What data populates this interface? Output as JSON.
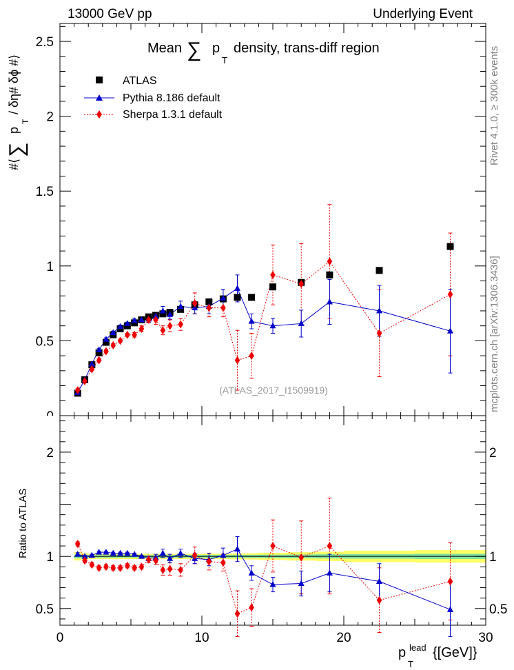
{
  "header": {
    "left": "13000 GeV pp",
    "right": "Underlying Event"
  },
  "side_labels": {
    "rivet": "Rivet 4.1.0, ≥ 300k events",
    "mcplots": "mcplots.cern.ch [arXiv:1306.3436]"
  },
  "watermark": "(ATLAS_2017_I1509919)",
  "colors": {
    "atlas": "#000000",
    "pythia": "#0000cc",
    "sherpa": "#ee0000",
    "band_inner": "#7fe0a0",
    "band_outer": "#ffff66"
  },
  "chart_data": [
    {
      "type": "scatter",
      "title": "Mean ∑ p_T density, trans-diff region",
      "title_parts": {
        "pre": "Mean",
        "sum": "∑",
        "p": "p",
        "sub": "T",
        "post": "density, trans-diff region"
      },
      "ylabel": "#⟨ ∑ p_T / δη# δϕ #⟩",
      "ylabel_parts": {
        "pre": "#⟨",
        "sum": "∑",
        "p": "p",
        "sub": "T",
        "post": "/ δη# δϕ #⟩"
      },
      "xlim": [
        0,
        30
      ],
      "ylim": [
        0,
        2.62
      ],
      "yticks": [
        0.5,
        1,
        1.5,
        2,
        2.5
      ],
      "ytick_labels": [
        "0.5",
        "1",
        "1.5",
        "2",
        "2.5"
      ],
      "y_bottom_label": "0",
      "legend": [
        {
          "name": "ATLAS",
          "marker": "square"
        },
        {
          "name": "Pythia 8.186 default",
          "marker": "triangle"
        },
        {
          "name": "Sherpa 1.3.1 default",
          "marker": "diamond"
        }
      ],
      "series": [
        {
          "name": "ATLAS",
          "x": [
            1.25,
            1.75,
            2.25,
            2.75,
            3.25,
            3.75,
            4.25,
            4.75,
            5.25,
            5.75,
            6.25,
            6.75,
            7.25,
            7.75,
            8.5,
            9.5,
            10.5,
            11.5,
            12.5,
            13.5,
            15,
            17,
            19,
            22.5,
            27.5
          ],
          "y": [
            0.15,
            0.24,
            0.34,
            0.42,
            0.49,
            0.54,
            0.58,
            0.6,
            0.62,
            0.64,
            0.66,
            0.67,
            0.68,
            0.69,
            0.71,
            0.74,
            0.76,
            0.78,
            0.79,
            0.79,
            0.86,
            0.89,
            0.94,
            0.97,
            1.13
          ]
        },
        {
          "name": "Pythia 8.186 default",
          "x": [
            1.25,
            1.75,
            2.25,
            2.75,
            3.25,
            3.75,
            4.25,
            4.75,
            5.25,
            5.75,
            6.25,
            6.75,
            7.25,
            7.75,
            8.5,
            9.5,
            10.5,
            11.5,
            12.5,
            13.5,
            15,
            17,
            19,
            22.5,
            27.5
          ],
          "y": [
            0.155,
            0.24,
            0.345,
            0.44,
            0.51,
            0.555,
            0.595,
            0.615,
            0.635,
            0.64,
            0.645,
            0.665,
            0.7,
            0.675,
            0.73,
            0.72,
            0.73,
            0.785,
            0.85,
            0.63,
            0.6,
            0.615,
            0.76,
            0.7,
            0.565
          ],
          "err": [
            0.01,
            0.01,
            0.01,
            0.01,
            0.01,
            0.01,
            0.01,
            0.01,
            0.015,
            0.015,
            0.02,
            0.02,
            0.03,
            0.03,
            0.035,
            0.04,
            0.05,
            0.06,
            0.09,
            0.05,
            0.05,
            0.09,
            0.15,
            0.17,
            0.28
          ]
        },
        {
          "name": "Sherpa 1.3.1 default",
          "x": [
            1.25,
            1.75,
            2.25,
            2.75,
            3.25,
            3.75,
            4.25,
            4.75,
            5.25,
            5.75,
            6.25,
            6.75,
            7.25,
            7.75,
            8.5,
            9.5,
            10.5,
            11.5,
            12.5,
            13.5,
            15,
            17,
            19,
            22.5,
            27.5
          ],
          "y": [
            0.17,
            0.23,
            0.31,
            0.37,
            0.43,
            0.47,
            0.5,
            0.54,
            0.54,
            0.58,
            0.64,
            0.64,
            0.57,
            0.6,
            0.61,
            0.75,
            0.72,
            0.72,
            0.37,
            0.4,
            0.94,
            0.88,
            1.03,
            0.55,
            0.81
          ],
          "err": [
            0.01,
            0.01,
            0.01,
            0.01,
            0.01,
            0.01,
            0.01,
            0.01,
            0.015,
            0.02,
            0.02,
            0.03,
            0.03,
            0.04,
            0.04,
            0.07,
            0.06,
            0.06,
            0.2,
            0.15,
            0.2,
            0.27,
            0.38,
            0.29,
            0.41
          ]
        }
      ]
    },
    {
      "type": "scatter",
      "title": "",
      "ylabel": "Ratio to ATLAS",
      "xlabel": "p_T^lead {[GeV]}",
      "xlabel_parts": {
        "p": "p",
        "sub": "T",
        "sup": "lead",
        "post": "{[GeV]}"
      },
      "xlim": [
        0,
        30
      ],
      "ylim": [
        0.34,
        2.35
      ],
      "xticks": [
        0,
        10,
        20,
        30
      ],
      "xtick_labels": [
        "0",
        "10",
        "20",
        "30"
      ],
      "yticks": [
        0.5,
        1,
        2
      ],
      "ytick_labels": [
        "0.5",
        "1",
        "2"
      ],
      "bands": {
        "x_edges": [
          1,
          1.5,
          2,
          2.5,
          3,
          3.5,
          4,
          4.5,
          5,
          5.5,
          6,
          6.5,
          7,
          7.5,
          8,
          9,
          10,
          11,
          12,
          13,
          14,
          16,
          18,
          20,
          25,
          30
        ],
        "inner": [
          0.02,
          0.015,
          0.012,
          0.012,
          0.012,
          0.012,
          0.012,
          0.012,
          0.012,
          0.012,
          0.012,
          0.012,
          0.012,
          0.012,
          0.013,
          0.014,
          0.014,
          0.014,
          0.014,
          0.015,
          0.016,
          0.018,
          0.02,
          0.022,
          0.025
        ],
        "outer": [
          0.04,
          0.03,
          0.025,
          0.025,
          0.025,
          0.025,
          0.025,
          0.025,
          0.025,
          0.025,
          0.025,
          0.025,
          0.025,
          0.025,
          0.025,
          0.025,
          0.025,
          0.025,
          0.028,
          0.03,
          0.035,
          0.04,
          0.045,
          0.055,
          0.06
        ]
      },
      "series": [
        {
          "name": "Pythia 8.186 default",
          "x": [
            1.25,
            1.75,
            2.25,
            2.75,
            3.25,
            3.75,
            4.25,
            4.75,
            5.25,
            5.75,
            6.25,
            6.75,
            7.25,
            7.75,
            8.5,
            9.5,
            10.5,
            11.5,
            12.5,
            13.5,
            15,
            17,
            19,
            22.5,
            27.5
          ],
          "y": [
            1.02,
            1.0,
            1.01,
            1.04,
            1.04,
            1.03,
            1.03,
            1.03,
            1.02,
            1.0,
            0.98,
            0.99,
            1.03,
            0.98,
            1.03,
            0.98,
            0.97,
            1.01,
            1.07,
            0.84,
            0.73,
            0.74,
            0.84,
            0.76,
            0.49
          ],
          "err": [
            0.015,
            0.01,
            0.01,
            0.01,
            0.01,
            0.01,
            0.01,
            0.01,
            0.01,
            0.01,
            0.02,
            0.03,
            0.04,
            0.04,
            0.04,
            0.05,
            0.06,
            0.07,
            0.12,
            0.07,
            0.07,
            0.12,
            0.18,
            0.17,
            0.26
          ]
        },
        {
          "name": "Sherpa 1.3.1 default",
          "x": [
            1.25,
            1.75,
            2.25,
            2.75,
            3.25,
            3.75,
            4.25,
            4.75,
            5.25,
            5.75,
            6.25,
            6.75,
            7.25,
            7.75,
            8.5,
            9.5,
            10.5,
            11.5,
            12.5,
            13.5,
            15,
            17,
            19,
            22.5,
            27.5
          ],
          "y": [
            1.12,
            0.96,
            0.92,
            0.89,
            0.9,
            0.89,
            0.89,
            0.91,
            0.89,
            0.9,
            0.97,
            0.96,
            0.87,
            0.88,
            0.87,
            1.01,
            0.95,
            0.94,
            0.45,
            0.51,
            1.1,
            0.99,
            1.1,
            0.58,
            0.76
          ],
          "err": [
            0.02,
            0.02,
            0.02,
            0.02,
            0.02,
            0.02,
            0.02,
            0.02,
            0.02,
            0.02,
            0.03,
            0.04,
            0.05,
            0.06,
            0.06,
            0.08,
            0.08,
            0.08,
            0.22,
            0.18,
            0.25,
            0.35,
            0.46,
            0.31,
            0.37
          ]
        }
      ]
    }
  ]
}
